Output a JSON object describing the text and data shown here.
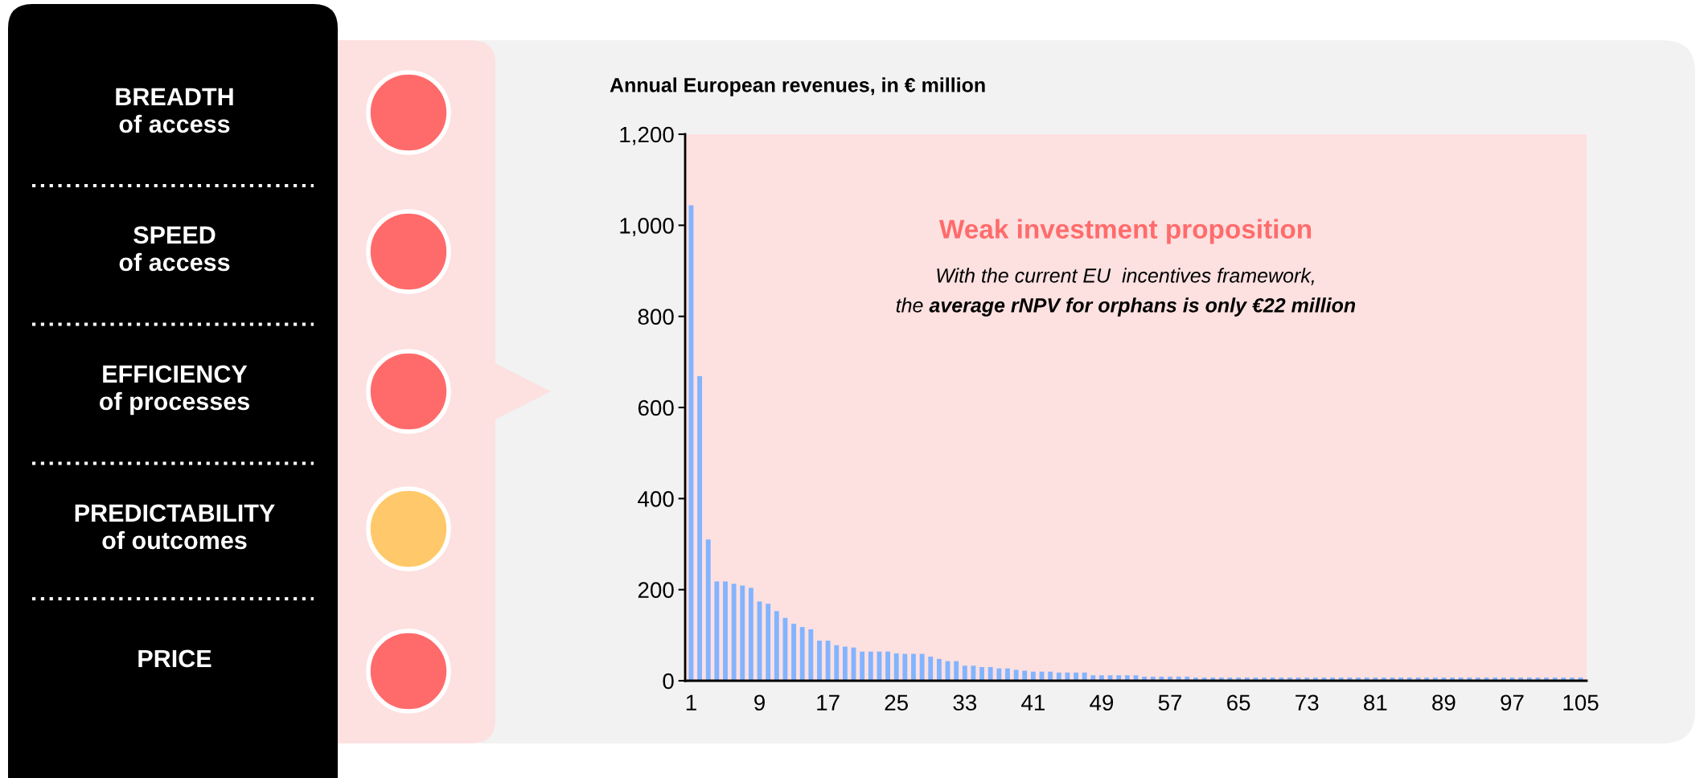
{
  "chart_data": [
    {
      "type": "other",
      "annotations": [
        "BREADTH\nof access",
        "SPEED\nof access",
        "EFFICIENCY\nof processes",
        "PREDICTABILITY\nof outcomes",
        "PRICE"
      ],
      "colors": [
        "#ff6b6b",
        "#ff6b6b",
        "#ff6b6b",
        "#ffc96b",
        "#ff6b6b"
      ]
    },
    {
      "type": "bar",
      "title": "Annual European revenues, in € million",
      "color": "#82b4ff",
      "grid": false,
      "categories": [
        "1",
        null,
        null,
        null,
        null,
        null,
        null,
        null,
        "9",
        null,
        null,
        null,
        null,
        null,
        null,
        null,
        "17",
        null,
        null,
        null,
        null,
        null,
        null,
        null,
        "25",
        null,
        null,
        null,
        null,
        null,
        null,
        null,
        "33",
        null,
        null,
        null,
        null,
        null,
        null,
        null,
        "41",
        null,
        null,
        null,
        null,
        null,
        null,
        null,
        "49",
        null,
        null,
        null,
        null,
        null,
        null,
        null,
        "57",
        null,
        null,
        null,
        null,
        null,
        null,
        null,
        "65",
        null,
        null,
        null,
        null,
        null,
        null,
        null,
        "73",
        null,
        null,
        null,
        null,
        null,
        null,
        null,
        "81",
        null,
        null,
        null,
        null,
        null,
        null,
        null,
        "89",
        null,
        null,
        null,
        null,
        null,
        null,
        null,
        "97",
        null,
        null,
        null,
        null,
        null,
        null,
        null,
        "105"
      ],
      "values": [
        1044,
        669,
        310,
        218,
        218,
        213,
        209,
        204,
        174,
        169,
        153,
        138,
        125,
        118,
        113,
        88,
        88,
        78,
        75,
        73,
        64,
        64,
        64,
        64,
        60,
        59,
        59,
        59,
        53,
        48,
        43,
        43,
        33,
        33,
        30,
        30,
        27,
        27,
        24,
        22,
        20,
        20,
        20,
        18,
        18,
        18,
        18,
        12,
        12,
        12,
        12,
        12,
        12,
        9,
        9,
        9,
        9,
        9,
        9,
        7,
        7,
        7,
        7,
        7,
        7,
        7,
        7,
        7,
        7,
        7,
        7,
        7,
        7,
        7,
        7,
        7,
        7,
        7,
        7,
        7,
        7,
        7,
        7,
        7,
        7,
        7,
        7,
        7,
        7,
        7,
        7,
        7,
        7,
        7,
        7,
        7,
        7,
        7,
        7,
        7,
        7,
        7,
        7,
        7,
        7
      ],
      "ylim": [
        0,
        1200
      ],
      "yticks": [
        {
          "value": 0,
          "label": "0"
        },
        {
          "value": 200,
          "label": "200"
        },
        {
          "value": 400,
          "label": "400"
        },
        {
          "value": 600,
          "label": "600"
        },
        {
          "value": 800,
          "label": "800"
        },
        {
          "value": 1000,
          "label": "1,000"
        },
        {
          "value": 1200,
          "label": "1,200"
        }
      ],
      "annotations": [
        "Weak investment proposition",
        "With the current EU  incentives framework,",
        "the",
        "average rNPV for orphans is only €22 million"
      ]
    }
  ]
}
